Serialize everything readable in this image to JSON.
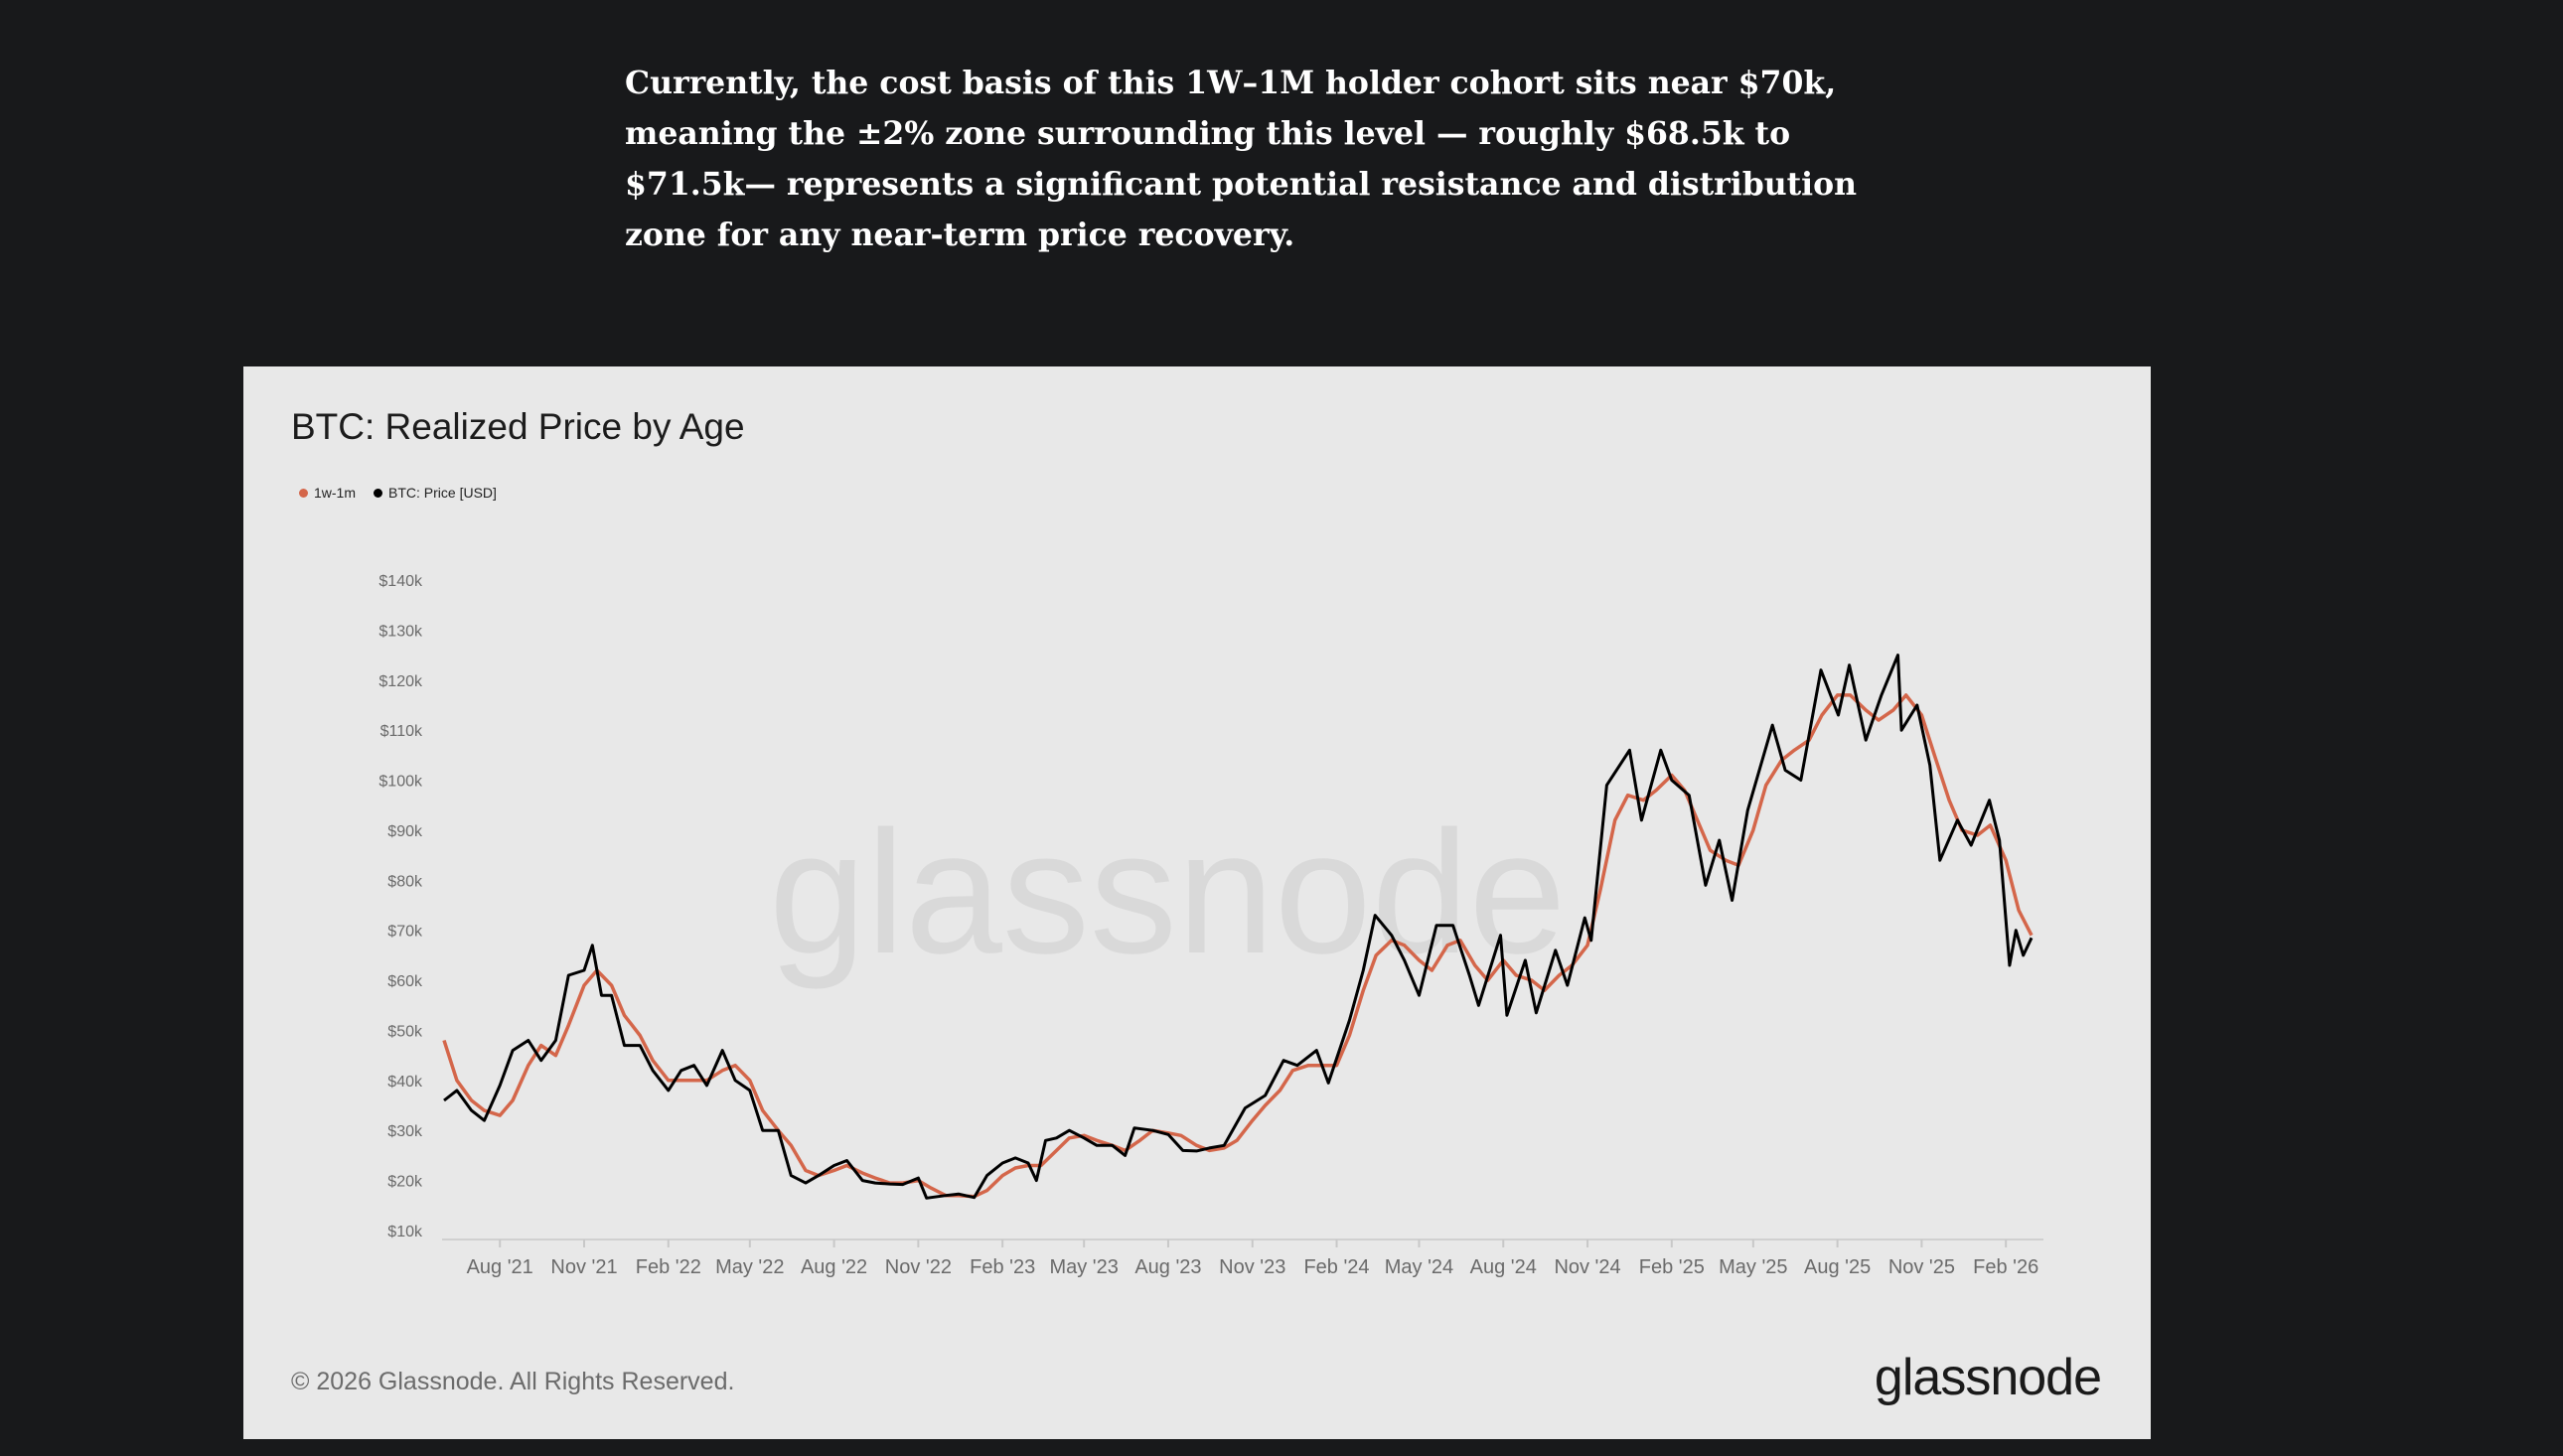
{
  "article": {
    "lines": [
      "Currently, the cost basis of this 1W–1M holder cohort sits near $70k,",
      "meaning the ±2% zone surrounding this level — roughly $68.5k to",
      "$71.5k— represents a significant potential resistance and distribution",
      "zone for any near-term price recovery."
    ]
  },
  "footer": {
    "copyright": "© 2026 Glassnode. All Rights Reserved.",
    "logo": "glassnode"
  },
  "watermark": "glassnode",
  "colors": {
    "page_background": "#18191b",
    "card_background": "#e8e8e8",
    "realized_price_line": "#d4664a",
    "btc_price_line": "#000000"
  },
  "chart_data": {
    "type": "line",
    "title": "BTC: Realized Price by Age",
    "xlabel": "",
    "ylabel": "",
    "ylim": [
      10000,
      140000
    ],
    "xlim": [
      "2021-06-01",
      "2026-03-01"
    ],
    "y_ticks": [
      10000,
      20000,
      30000,
      40000,
      50000,
      60000,
      70000,
      80000,
      90000,
      100000,
      110000,
      120000,
      130000,
      140000
    ],
    "y_tick_labels": [
      "$10k",
      "$20k",
      "$30k",
      "$40k",
      "$50k",
      "$60k",
      "$70k",
      "$80k",
      "$90k",
      "$100k",
      "$110k",
      "$120k",
      "$130k",
      "$140k"
    ],
    "x_ticks": [
      "2021-08-01",
      "2021-11-01",
      "2022-02-01",
      "2022-05-01",
      "2022-08-01",
      "2022-11-01",
      "2023-02-01",
      "2023-05-01",
      "2023-08-01",
      "2023-11-01",
      "2024-02-01",
      "2024-05-01",
      "2024-08-01",
      "2024-11-01",
      "2025-02-01",
      "2025-05-01",
      "2025-08-01",
      "2025-11-01",
      "2026-02-01"
    ],
    "x_tick_labels": [
      "Aug '21",
      "Nov '21",
      "Feb '22",
      "May '22",
      "Aug '22",
      "Nov '22",
      "Feb '23",
      "May '23",
      "Aug '23",
      "Nov '23",
      "Feb '24",
      "May '24",
      "Aug '24",
      "Nov '24",
      "Feb '25",
      "May '25",
      "Aug '25",
      "Nov '25",
      "Feb '26"
    ],
    "grid": false,
    "legend_position": "top-left",
    "series": [
      {
        "name": "1w-1m",
        "color": "#d4664a",
        "points": [
          [
            "2021-06-01",
            48000
          ],
          [
            "2021-06-15",
            40000
          ],
          [
            "2021-07-01",
            36000
          ],
          [
            "2021-07-15",
            34000
          ],
          [
            "2021-08-01",
            33000
          ],
          [
            "2021-08-15",
            36000
          ],
          [
            "2021-09-01",
            43000
          ],
          [
            "2021-09-15",
            47000
          ],
          [
            "2021-10-01",
            45000
          ],
          [
            "2021-10-15",
            51000
          ],
          [
            "2021-11-01",
            59000
          ],
          [
            "2021-11-15",
            62000
          ],
          [
            "2021-12-01",
            59000
          ],
          [
            "2021-12-15",
            53000
          ],
          [
            "2022-01-01",
            49000
          ],
          [
            "2022-01-15",
            44000
          ],
          [
            "2022-02-01",
            40000
          ],
          [
            "2022-02-15",
            40000
          ],
          [
            "2022-03-01",
            40000
          ],
          [
            "2022-03-15",
            40000
          ],
          [
            "2022-04-01",
            42000
          ],
          [
            "2022-04-15",
            43000
          ],
          [
            "2022-05-01",
            40000
          ],
          [
            "2022-05-15",
            34000
          ],
          [
            "2022-06-01",
            30000
          ],
          [
            "2022-06-15",
            27000
          ],
          [
            "2022-07-01",
            22000
          ],
          [
            "2022-07-15",
            21000
          ],
          [
            "2022-08-01",
            22000
          ],
          [
            "2022-08-15",
            23000
          ],
          [
            "2022-09-01",
            21500
          ],
          [
            "2022-09-15",
            20500
          ],
          [
            "2022-10-01",
            19500
          ],
          [
            "2022-10-15",
            19500
          ],
          [
            "2022-11-01",
            20000
          ],
          [
            "2022-11-15",
            18500
          ],
          [
            "2022-12-01",
            17000
          ],
          [
            "2022-12-15",
            17000
          ],
          [
            "2023-01-01",
            16800
          ],
          [
            "2023-01-15",
            18000
          ],
          [
            "2023-02-01",
            21000
          ],
          [
            "2023-02-15",
            22500
          ],
          [
            "2023-03-01",
            23000
          ],
          [
            "2023-03-15",
            23000
          ],
          [
            "2023-04-01",
            26000
          ],
          [
            "2023-04-15",
            28500
          ],
          [
            "2023-05-01",
            29000
          ],
          [
            "2023-05-15",
            28000
          ],
          [
            "2023-06-01",
            27000
          ],
          [
            "2023-06-15",
            26000
          ],
          [
            "2023-07-01",
            28000
          ],
          [
            "2023-07-15",
            30000
          ],
          [
            "2023-08-01",
            29500
          ],
          [
            "2023-08-15",
            29000
          ],
          [
            "2023-09-01",
            27000
          ],
          [
            "2023-09-15",
            26000
          ],
          [
            "2023-10-01",
            26500
          ],
          [
            "2023-10-15",
            28000
          ],
          [
            "2023-11-01",
            32000
          ],
          [
            "2023-11-15",
            35000
          ],
          [
            "2023-12-01",
            38000
          ],
          [
            "2023-12-15",
            42000
          ],
          [
            "2024-01-01",
            43000
          ],
          [
            "2024-01-15",
            43000
          ],
          [
            "2024-02-01",
            43000
          ],
          [
            "2024-02-15",
            49000
          ],
          [
            "2024-03-01",
            58000
          ],
          [
            "2024-03-15",
            65000
          ],
          [
            "2024-04-01",
            68000
          ],
          [
            "2024-04-15",
            67000
          ],
          [
            "2024-05-01",
            64000
          ],
          [
            "2024-05-15",
            62000
          ],
          [
            "2024-06-01",
            67000
          ],
          [
            "2024-06-15",
            68000
          ],
          [
            "2024-07-01",
            63000
          ],
          [
            "2024-07-15",
            60000
          ],
          [
            "2024-08-01",
            64000
          ],
          [
            "2024-08-15",
            61000
          ],
          [
            "2024-09-01",
            60000
          ],
          [
            "2024-09-15",
            58000
          ],
          [
            "2024-10-01",
            61000
          ],
          [
            "2024-10-15",
            63000
          ],
          [
            "2024-11-01",
            67000
          ],
          [
            "2024-11-15",
            78000
          ],
          [
            "2024-12-01",
            92000
          ],
          [
            "2024-12-15",
            97000
          ],
          [
            "2025-01-01",
            96000
          ],
          [
            "2025-01-15",
            98000
          ],
          [
            "2025-02-01",
            101000
          ],
          [
            "2025-02-15",
            98000
          ],
          [
            "2025-03-01",
            92000
          ],
          [
            "2025-03-15",
            86000
          ],
          [
            "2025-04-01",
            84000
          ],
          [
            "2025-04-15",
            83000
          ],
          [
            "2025-05-01",
            90000
          ],
          [
            "2025-05-15",
            99000
          ],
          [
            "2025-06-01",
            104000
          ],
          [
            "2025-06-15",
            106000
          ],
          [
            "2025-07-01",
            108000
          ],
          [
            "2025-07-15",
            113000
          ],
          [
            "2025-08-01",
            117000
          ],
          [
            "2025-08-15",
            117000
          ],
          [
            "2025-09-01",
            114000
          ],
          [
            "2025-09-15",
            112000
          ],
          [
            "2025-10-01",
            114000
          ],
          [
            "2025-10-15",
            117000
          ],
          [
            "2025-11-01",
            113000
          ],
          [
            "2025-11-15",
            105000
          ],
          [
            "2025-12-01",
            96000
          ],
          [
            "2025-12-15",
            90000
          ],
          [
            "2026-01-01",
            89000
          ],
          [
            "2026-01-15",
            91000
          ],
          [
            "2026-02-01",
            84000
          ],
          [
            "2026-02-15",
            74000
          ],
          [
            "2026-03-01",
            69000
          ]
        ]
      },
      {
        "name": "BTC: Price [USD]",
        "color": "#000000",
        "points": [
          [
            "2021-06-01",
            36000
          ],
          [
            "2021-06-15",
            38000
          ],
          [
            "2021-07-01",
            34000
          ],
          [
            "2021-07-15",
            32000
          ],
          [
            "2021-08-01",
            39000
          ],
          [
            "2021-08-15",
            46000
          ],
          [
            "2021-09-01",
            48000
          ],
          [
            "2021-09-15",
            44000
          ],
          [
            "2021-10-01",
            48000
          ],
          [
            "2021-10-15",
            61000
          ],
          [
            "2021-11-01",
            62000
          ],
          [
            "2021-11-10",
            67000
          ],
          [
            "2021-11-20",
            57000
          ],
          [
            "2021-12-01",
            57000
          ],
          [
            "2021-12-15",
            47000
          ],
          [
            "2022-01-01",
            47000
          ],
          [
            "2022-01-15",
            42000
          ],
          [
            "2022-02-01",
            38000
          ],
          [
            "2022-02-15",
            42000
          ],
          [
            "2022-03-01",
            43000
          ],
          [
            "2022-03-15",
            39000
          ],
          [
            "2022-04-01",
            46000
          ],
          [
            "2022-04-15",
            40000
          ],
          [
            "2022-05-01",
            38000
          ],
          [
            "2022-05-15",
            30000
          ],
          [
            "2022-06-01",
            30000
          ],
          [
            "2022-06-15",
            21000
          ],
          [
            "2022-07-01",
            19500
          ],
          [
            "2022-07-15",
            21000
          ],
          [
            "2022-08-01",
            23000
          ],
          [
            "2022-08-15",
            24000
          ],
          [
            "2022-09-01",
            20000
          ],
          [
            "2022-09-15",
            19500
          ],
          [
            "2022-10-01",
            19300
          ],
          [
            "2022-10-15",
            19200
          ],
          [
            "2022-11-01",
            20500
          ],
          [
            "2022-11-10",
            16500
          ],
          [
            "2022-12-01",
            17000
          ],
          [
            "2022-12-15",
            17300
          ],
          [
            "2023-01-01",
            16600
          ],
          [
            "2023-01-15",
            21000
          ],
          [
            "2023-02-01",
            23500
          ],
          [
            "2023-02-15",
            24500
          ],
          [
            "2023-03-01",
            23500
          ],
          [
            "2023-03-10",
            20000
          ],
          [
            "2023-03-20",
            28000
          ],
          [
            "2023-04-01",
            28500
          ],
          [
            "2023-04-15",
            30000
          ],
          [
            "2023-05-01",
            28500
          ],
          [
            "2023-05-15",
            27000
          ],
          [
            "2023-06-01",
            27000
          ],
          [
            "2023-06-15",
            25000
          ],
          [
            "2023-06-25",
            30500
          ],
          [
            "2023-07-15",
            30000
          ],
          [
            "2023-08-01",
            29200
          ],
          [
            "2023-08-17",
            26000
          ],
          [
            "2023-09-01",
            25900
          ],
          [
            "2023-09-15",
            26500
          ],
          [
            "2023-10-01",
            27000
          ],
          [
            "2023-10-24",
            34500
          ],
          [
            "2023-11-15",
            37000
          ],
          [
            "2023-12-05",
            44000
          ],
          [
            "2023-12-20",
            43000
          ],
          [
            "2024-01-10",
            46000
          ],
          [
            "2024-01-23",
            39500
          ],
          [
            "2024-02-15",
            52000
          ],
          [
            "2024-03-01",
            62000
          ],
          [
            "2024-03-14",
            73000
          ],
          [
            "2024-04-01",
            69000
          ],
          [
            "2024-04-15",
            64000
          ],
          [
            "2024-05-01",
            57000
          ],
          [
            "2024-05-20",
            71000
          ],
          [
            "2024-06-07",
            71000
          ],
          [
            "2024-06-25",
            61000
          ],
          [
            "2024-07-05",
            55000
          ],
          [
            "2024-07-29",
            69000
          ],
          [
            "2024-08-05",
            53000
          ],
          [
            "2024-08-25",
            64000
          ],
          [
            "2024-09-06",
            53500
          ],
          [
            "2024-09-27",
            66000
          ],
          [
            "2024-10-10",
            59000
          ],
          [
            "2024-10-29",
            72500
          ],
          [
            "2024-11-05",
            68000
          ],
          [
            "2024-11-22",
            99000
          ],
          [
            "2024-12-17",
            106000
          ],
          [
            "2024-12-30",
            92000
          ],
          [
            "2025-01-20",
            106000
          ],
          [
            "2025-02-01",
            100000
          ],
          [
            "2025-02-20",
            97000
          ],
          [
            "2025-03-10",
            79000
          ],
          [
            "2025-03-25",
            88000
          ],
          [
            "2025-04-08",
            76000
          ],
          [
            "2025-04-25",
            94000
          ],
          [
            "2025-05-22",
            111000
          ],
          [
            "2025-06-05",
            102000
          ],
          [
            "2025-06-22",
            100000
          ],
          [
            "2025-07-14",
            122000
          ],
          [
            "2025-08-02",
            113000
          ],
          [
            "2025-08-14",
            123000
          ],
          [
            "2025-09-01",
            108000
          ],
          [
            "2025-09-18",
            117000
          ],
          [
            "2025-10-06",
            125000
          ],
          [
            "2025-10-10",
            110000
          ],
          [
            "2025-10-27",
            115000
          ],
          [
            "2025-11-10",
            103000
          ],
          [
            "2025-11-21",
            84000
          ],
          [
            "2025-12-10",
            92000
          ],
          [
            "2025-12-25",
            87000
          ],
          [
            "2026-01-14",
            96000
          ],
          [
            "2026-01-25",
            88000
          ],
          [
            "2026-02-05",
            63000
          ],
          [
            "2026-02-12",
            70000
          ],
          [
            "2026-02-20",
            65000
          ],
          [
            "2026-03-01",
            68500
          ]
        ]
      }
    ]
  }
}
